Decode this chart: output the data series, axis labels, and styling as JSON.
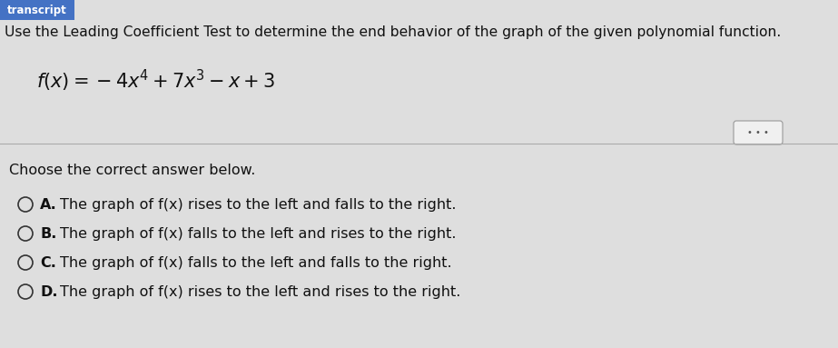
{
  "bg_color_top": "#d8d8d8",
  "bg_color_bottom": "#e0e0e0",
  "header_bg": "#4472c4",
  "header_text": "transcript",
  "header_text_color": "#ffffff",
  "title_line": "Use the Leading Coefficient Test to determine the end behavior of the graph of the given polynomial function.",
  "choose_text": "Choose the correct answer below.",
  "options": [
    {
      "letter": "A.",
      "text": "The graph of f(x) rises to the left and falls to the right."
    },
    {
      "letter": "B.",
      "text": "The graph of f(x) falls to the left and rises to the right."
    },
    {
      "letter": "C.",
      "text": "The graph of f(x) falls to the left and falls to the right."
    },
    {
      "letter": "D.",
      "text": "The graph of f(x) rises to the left and rises to the right."
    }
  ],
  "circle_color": "#333333",
  "text_color": "#111111",
  "font_size_title": 11.2,
  "font_size_function": 15,
  "font_size_options": 11.5,
  "font_size_choose": 11.5
}
